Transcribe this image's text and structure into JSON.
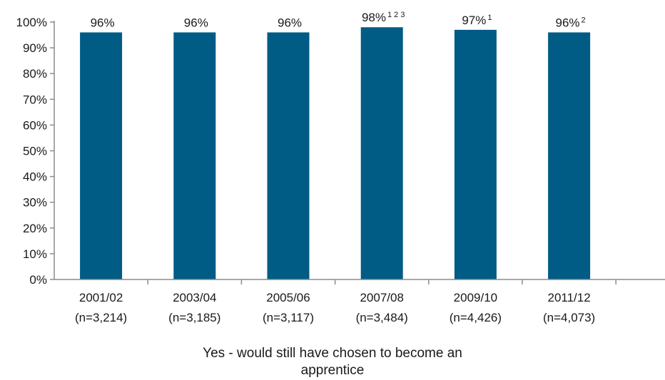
{
  "chart_data": {
    "type": "bar",
    "title": "",
    "xlabel": "",
    "ylabel": "",
    "ylim": [
      0,
      100
    ],
    "y_ticks": [
      "0%",
      "10%",
      "20%",
      "30%",
      "40%",
      "50%",
      "60%",
      "70%",
      "80%",
      "90%",
      "100%"
    ],
    "grid": false,
    "legend": "bottom",
    "categories": [
      "2001/02",
      "2003/04",
      "2005/06",
      "2007/08",
      "2009/10",
      "2011/12"
    ],
    "sample_sizes": [
      "(n=3,214)",
      "(n=3,185)",
      "(n=3,117)",
      "(n=3,484)",
      "(n=4,426)",
      "(n=4,073)"
    ],
    "series": [
      {
        "name": "Yes - would still have chosen to  become an apprentice",
        "color": "#005b85",
        "values": [
          96,
          96,
          96,
          98,
          97,
          96
        ],
        "data_labels": [
          "96%",
          "96%",
          "96%",
          "98%",
          "97%",
          "96%"
        ],
        "label_superscripts": [
          "",
          "",
          "",
          "1 2 3",
          "1",
          "2"
        ]
      }
    ]
  }
}
